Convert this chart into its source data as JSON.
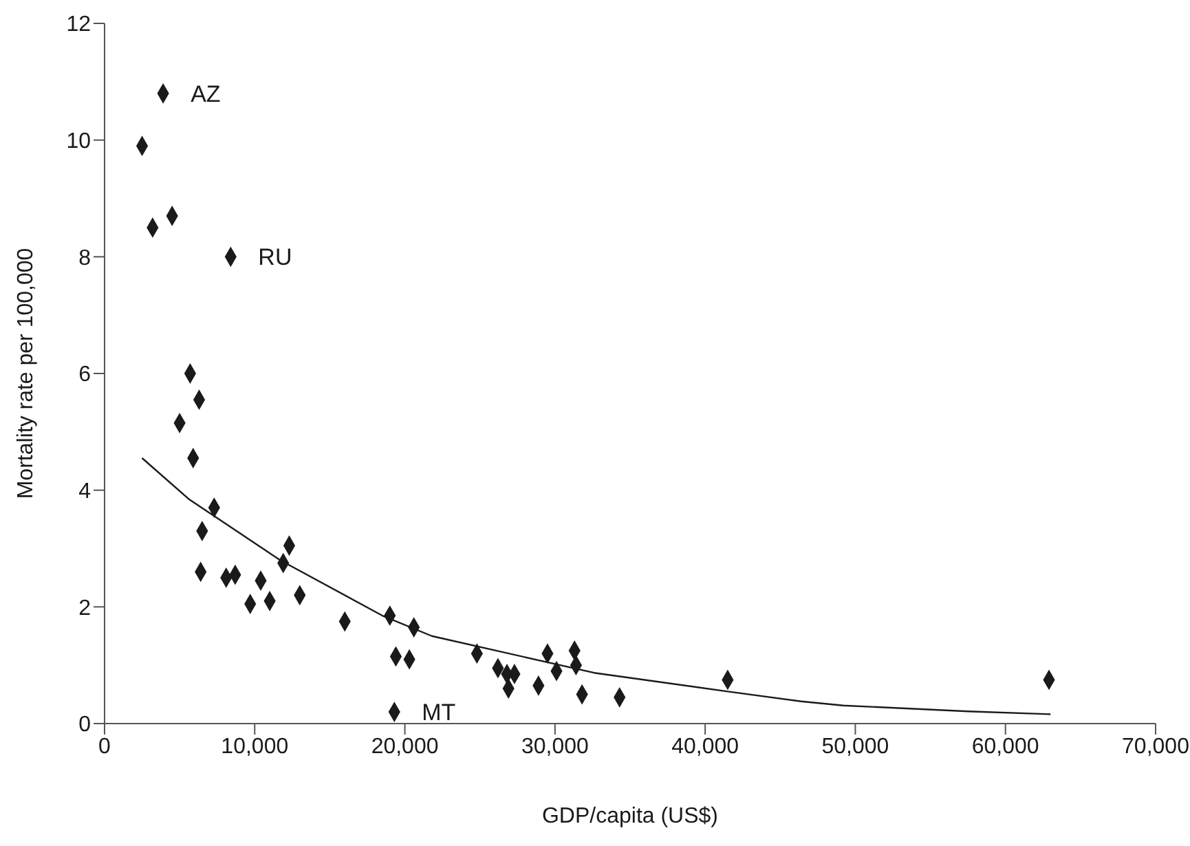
{
  "chart_data": {
    "type": "scatter",
    "xlabel": "GDP/capita (US$)",
    "ylabel": "Mortality rate per 100,000",
    "xlim": [
      0,
      70000
    ],
    "xticks": [
      0,
      {
        "value": 10000,
        "label": "10,000"
      },
      {
        "value": 20000,
        "label": "20,000"
      },
      {
        "value": 30000,
        "label": "30,000"
      },
      {
        "value": 40000,
        "label": "40,000"
      },
      {
        "value": 50000,
        "label": "50,000"
      },
      {
        "value": 60000,
        "label": "60,000"
      },
      {
        "value": 70000,
        "label": "70,000"
      }
    ],
    "ylim": [
      0,
      12
    ],
    "yticks": [
      0,
      2,
      4,
      6,
      8,
      10,
      12
    ],
    "grid": false,
    "legend": false,
    "marker": "diamond",
    "series": [
      {
        "color": "#1a1a1a",
        "x": [
          2500,
          3900,
          3200,
          4500,
          8400,
          5700,
          6300,
          5000,
          5900,
          7300,
          6500,
          6400,
          8100,
          8700,
          9700,
          10400,
          11000,
          11900,
          12300,
          13000,
          16000,
          19000,
          19400,
          19300,
          20300,
          20600,
          24800,
          26200,
          26800,
          26900,
          27300,
          28900,
          29500,
          30100,
          31300,
          31400,
          31800,
          34300,
          41500,
          62900
        ],
        "values": [
          9.9,
          10.8,
          8.5,
          8.7,
          8.0,
          6.0,
          5.55,
          5.15,
          4.55,
          3.7,
          3.3,
          2.6,
          2.5,
          2.55,
          2.05,
          2.45,
          2.1,
          2.75,
          3.05,
          2.2,
          1.75,
          1.85,
          1.15,
          0.2,
          1.1,
          1.65,
          1.2,
          0.95,
          0.85,
          0.6,
          0.85,
          0.65,
          1.2,
          0.9,
          1.25,
          1.0,
          0.5,
          0.45,
          0.75,
          0.75
        ]
      },
      {
        "type": "line",
        "color": "#1a1a1a",
        "marker": "none",
        "line_style": "solid",
        "x": [
          2500,
          5600,
          11700,
          18500,
          21800,
          32600,
          41500,
          46400,
          49200,
          57500,
          63000
        ],
        "values": [
          4.55,
          3.85,
          2.8,
          1.85,
          1.5,
          0.87,
          0.55,
          0.38,
          0.31,
          0.21,
          0.16
        ]
      }
    ],
    "annotations": [
      {
        "text": "AZ",
        "x": 3900,
        "y": 10.8
      },
      {
        "text": "RU",
        "x": 8400,
        "y": 8.0
      },
      {
        "text": "MT",
        "x": 19300,
        "y": 0.2
      }
    ]
  }
}
